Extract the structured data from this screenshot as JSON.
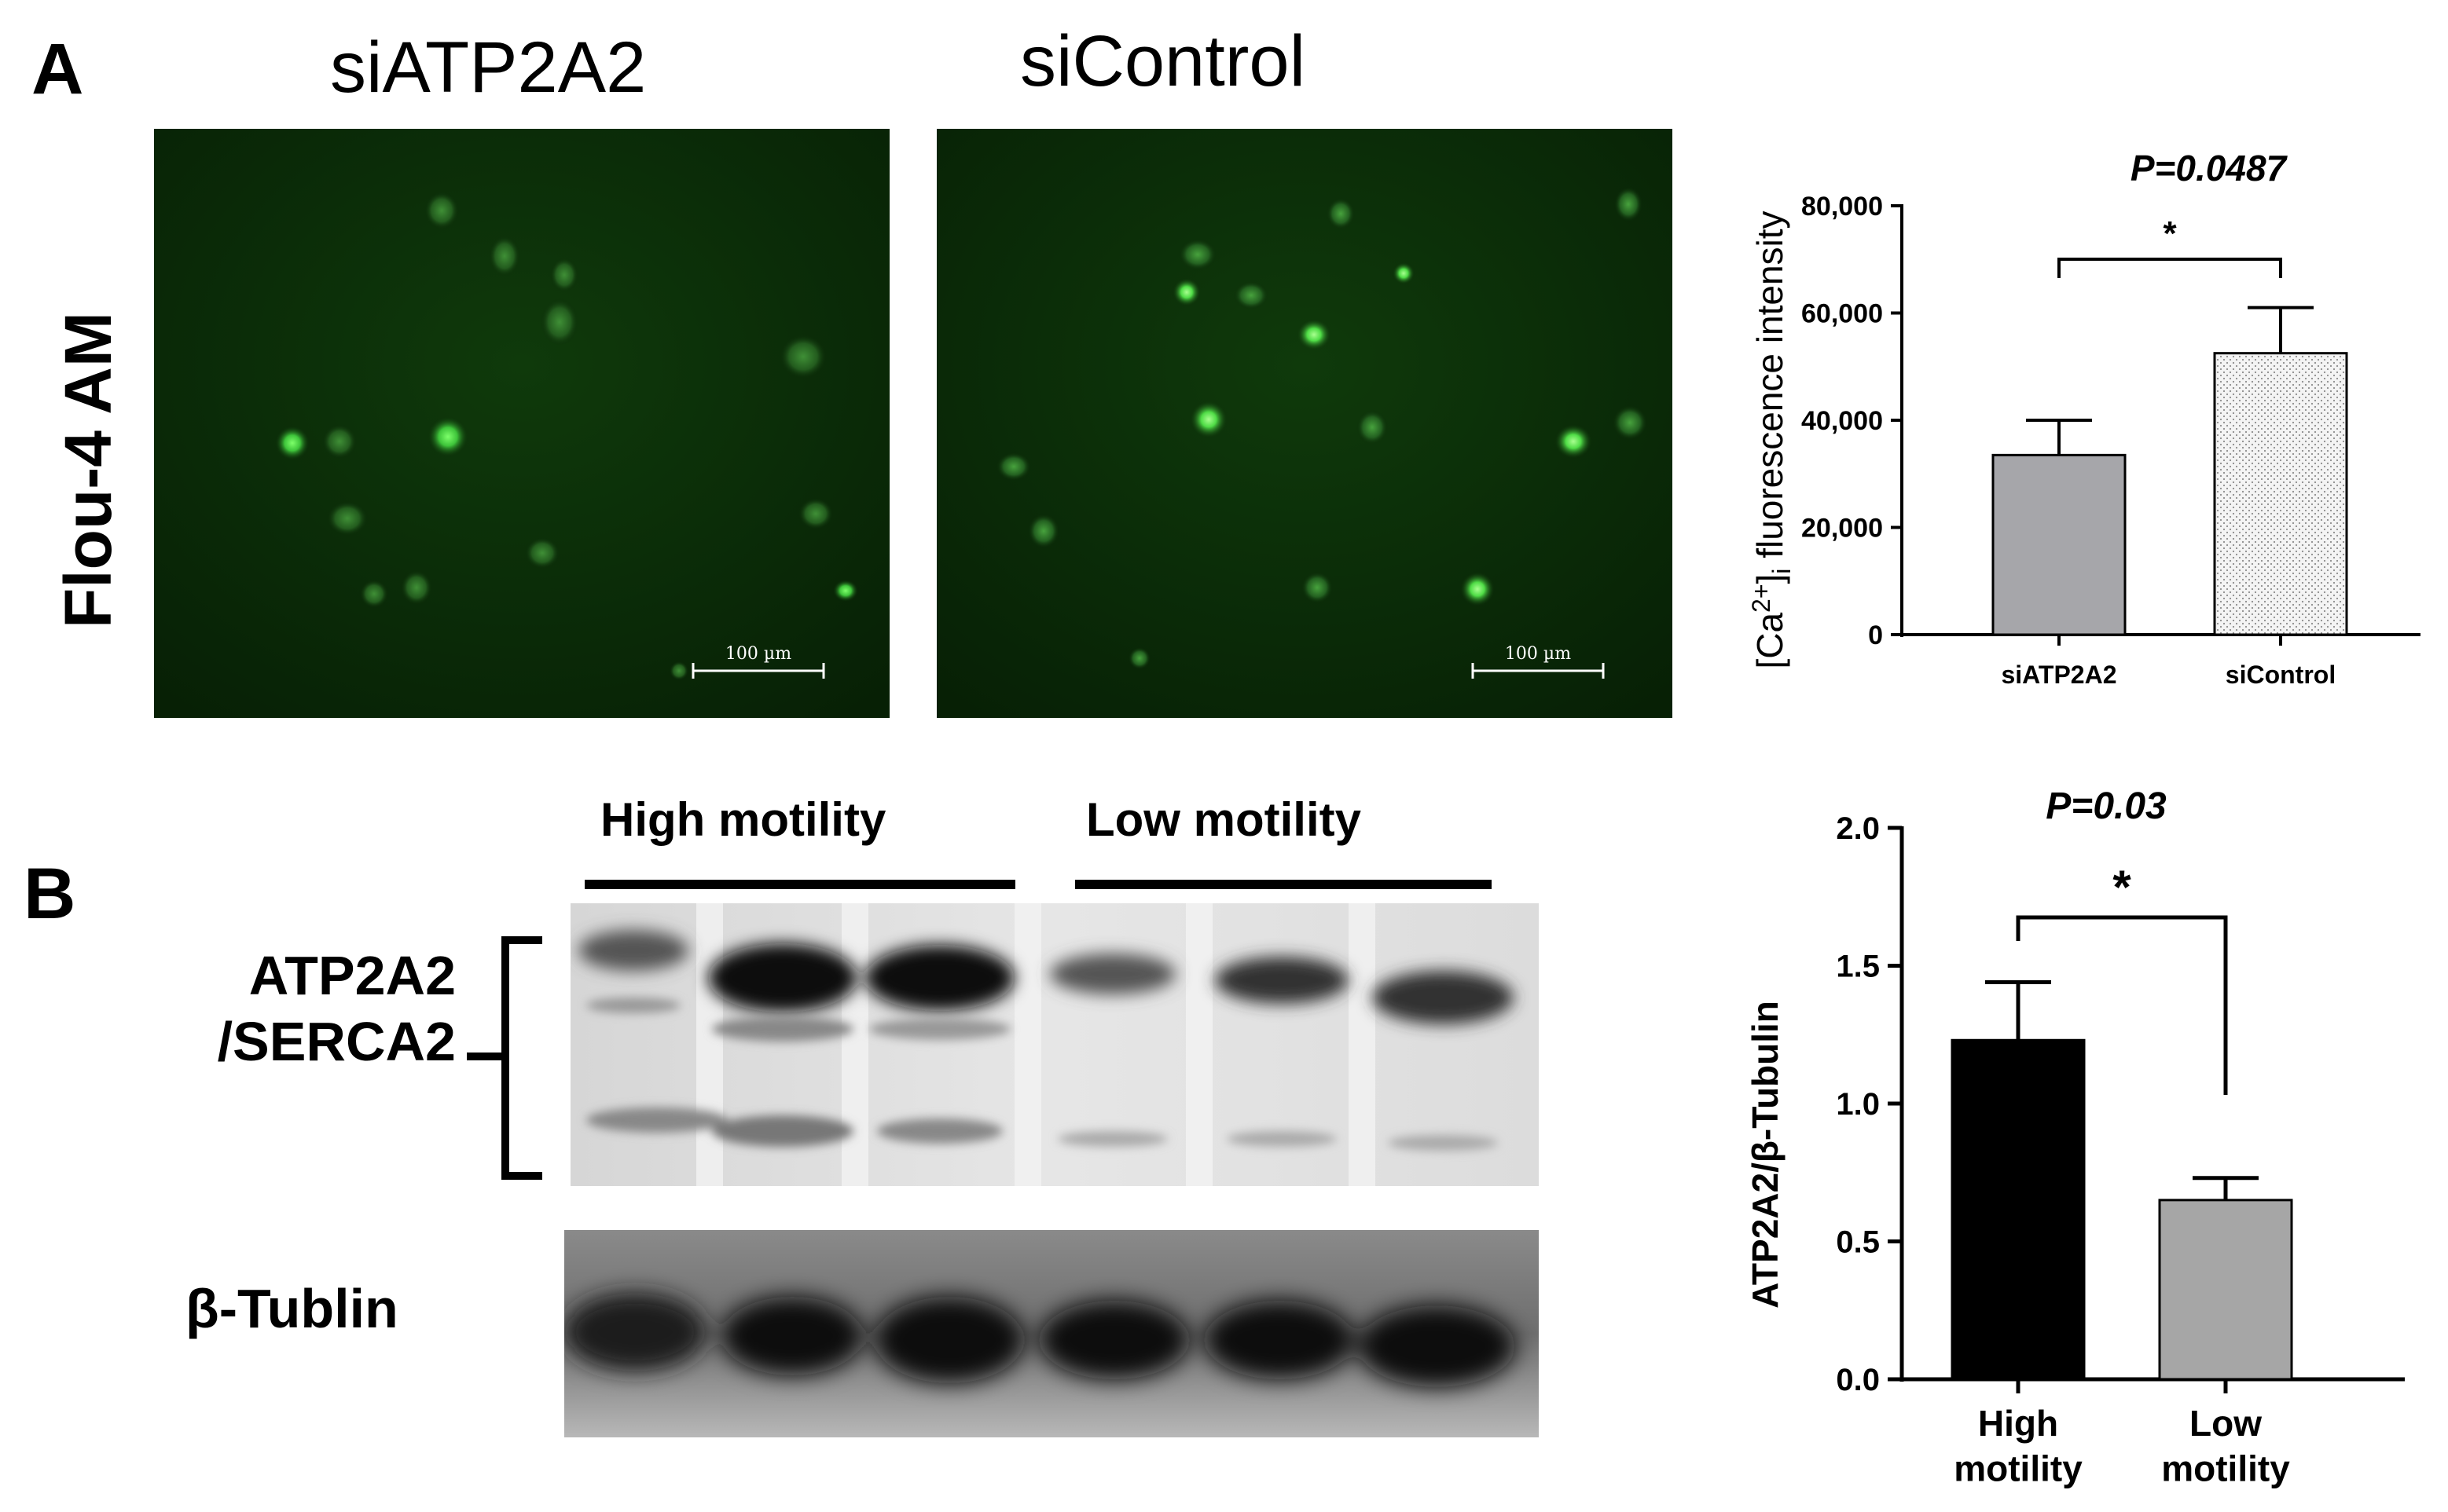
{
  "panel_a": {
    "letter": "A",
    "stain_label": "Flou-4 AM",
    "images": [
      {
        "title": "siATP2A2",
        "scale_bar": "100 µm"
      },
      {
        "title": "siControl",
        "scale_bar": "100 µm"
      }
    ]
  },
  "panel_b": {
    "letter": "B",
    "group_high": "High motility",
    "group_low": "Low motility",
    "band_label_line1": "ATP2A2",
    "band_label_line2": "/SERCA2",
    "loading_label": "β-Tublin"
  },
  "chart_data": [
    {
      "type": "bar",
      "categories": [
        "siATP2A2",
        "siControl"
      ],
      "values": [
        33500,
        52500
      ],
      "errors": [
        6500,
        8500
      ],
      "ylabel": "[Ca2+]i fluorescence intensity",
      "ylabel_parts": {
        "pre": "[Ca",
        "sup": "2+",
        "mid": "]",
        "sub": "i",
        "post": " fluorescence intensity"
      },
      "ylim": [
        0,
        80000
      ],
      "yticks": [
        0,
        20000,
        40000,
        60000,
        80000
      ],
      "ytick_labels": [
        "0",
        "20,000",
        "40,000",
        "60,000",
        "80,000"
      ],
      "significance": "*",
      "p_value": "P=0.0487",
      "colors": [
        "#a6a6aa",
        "#f2f2f2"
      ]
    },
    {
      "type": "bar",
      "categories": [
        "High\nmotility",
        "Low\nmotility"
      ],
      "values": [
        1.23,
        0.65
      ],
      "errors": [
        0.21,
        0.08
      ],
      "ylabel": "ATP2A2/β-Tubulin",
      "ylim": [
        0,
        2.0
      ],
      "yticks": [
        0,
        0.5,
        1.0,
        1.5,
        2.0
      ],
      "ytick_labels": [
        "0.0",
        "0.5",
        "1.0",
        "1.5",
        "2.0"
      ],
      "significance": "*",
      "p_value": "P=0.03",
      "colors": [
        "#000000",
        "#a6a6a6"
      ]
    }
  ]
}
